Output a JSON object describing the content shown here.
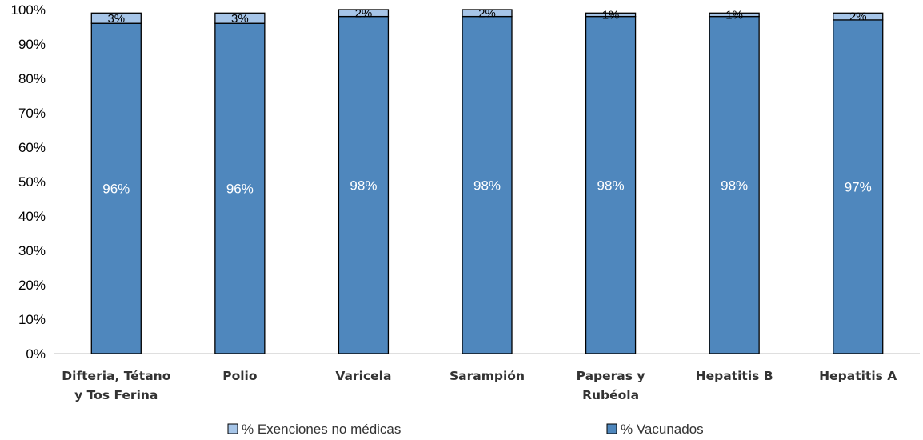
{
  "chart_data": {
    "type": "bar",
    "stacked": true,
    "categories": [
      [
        "Difteria, Tétano",
        "y Tos Ferina"
      ],
      [
        "Polio"
      ],
      [
        "Varicela"
      ],
      [
        "Sarampión"
      ],
      [
        "Paperas y",
        "Rubéola"
      ],
      [
        "Hepatitis B"
      ],
      [
        "Hepatitis A"
      ]
    ],
    "series": [
      {
        "name": "% Vacunados",
        "color": "#4f87bd",
        "values": [
          96,
          96,
          98,
          98,
          98,
          98,
          97
        ],
        "labels": [
          "96%",
          "96%",
          "98%",
          "98%",
          "98%",
          "98%",
          "97%"
        ]
      },
      {
        "name": "% Exenciones no médicas",
        "color": "#a6c5e8",
        "values": [
          3,
          3,
          2,
          2,
          1,
          1,
          2
        ],
        "labels": [
          "3%",
          "3%",
          "2%",
          "2%",
          "1%",
          "1%",
          "2%"
        ]
      }
    ],
    "ylim": [
      0,
      100
    ],
    "yticks": [
      "0%",
      "10%",
      "20%",
      "30%",
      "40%",
      "50%",
      "60%",
      "70%",
      "80%",
      "90%",
      "100%"
    ],
    "grid": false,
    "legend": "bottom",
    "legend_order": [
      "% Exenciones no médicas",
      "% Vacunados"
    ]
  }
}
